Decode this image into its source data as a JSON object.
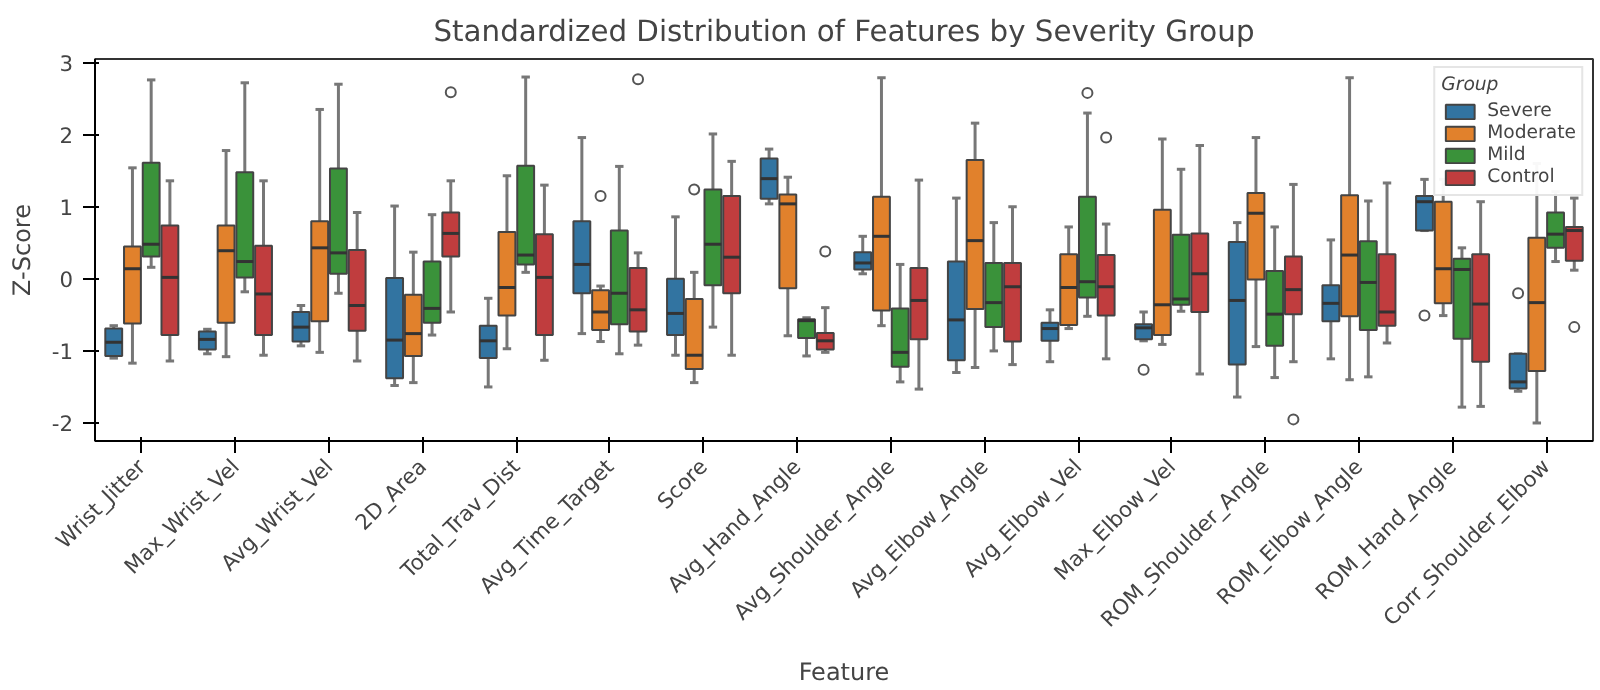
{
  "chart_data": {
    "type": "box",
    "title": "Standardized Distribution of Features by Severity Group",
    "xlabel": "Feature",
    "ylabel": "Z-Score",
    "legend_title": "Group",
    "legend": "top right",
    "grid": false,
    "categories": [
      "Wrist_Jitter",
      "Max_Wrist_Vel",
      "Avg_Wrist_Vel",
      "2D_Area",
      "Total_Trav_Dist",
      "Avg_Time_Target",
      "Score",
      "Avg_Hand_Angle",
      "Avg_Shoulder_Angle",
      "Avg_Elbow_Angle",
      "Avg_Elbow_Vel",
      "Max_Elbow_Vel",
      "ROM_Shoulder_Angle",
      "ROM_Elbow_Angle",
      "ROM_Hand_Angle",
      "Corr_Shoulder_Elbow"
    ],
    "ylim": [
      -2.25,
      3.05
    ],
    "yticks": [
      -2,
      -1,
      0,
      1,
      2,
      3
    ],
    "series": [
      {
        "name": "Severe",
        "color": "#3274a1",
        "boxes": [
          {
            "low": -1.1,
            "q1": -1.07,
            "median": -0.88,
            "q3": -0.69,
            "high": -0.65
          },
          {
            "low": -1.04,
            "q1": -0.98,
            "median": -0.84,
            "q3": -0.73,
            "high": -0.7
          },
          {
            "low": -0.93,
            "q1": -0.87,
            "median": -0.67,
            "q3": -0.46,
            "high": -0.37
          },
          {
            "low": -1.48,
            "q1": -1.38,
            "median": -0.85,
            "q3": 0.01,
            "high": 1.01
          },
          {
            "low": -1.5,
            "q1": -1.1,
            "median": -0.86,
            "q3": -0.65,
            "high": -0.27
          },
          {
            "low": -0.76,
            "q1": -0.2,
            "median": 0.2,
            "q3": 0.8,
            "high": 1.96
          },
          {
            "low": -1.06,
            "q1": -0.78,
            "median": -0.48,
            "q3": 0.0,
            "high": 0.86
          },
          {
            "low": 1.04,
            "q1": 1.11,
            "median": 1.39,
            "q3": 1.67,
            "high": 1.8
          },
          {
            "low": 0.07,
            "q1": 0.13,
            "median": 0.22,
            "q3": 0.37,
            "high": 0.59
          },
          {
            "low": -1.3,
            "q1": -1.13,
            "median": -0.57,
            "q3": 0.24,
            "high": 1.12
          },
          {
            "low": -1.15,
            "q1": -0.86,
            "median": -0.69,
            "q3": -0.61,
            "high": -0.43
          },
          {
            "low": -0.86,
            "q1": -0.84,
            "median": -0.68,
            "q3": -0.63,
            "high": -0.46,
            "outliers": [
              -1.26
            ]
          },
          {
            "low": -1.64,
            "q1": -1.19,
            "median": -0.3,
            "q3": 0.51,
            "high": 0.78
          },
          {
            "low": -1.11,
            "q1": -0.59,
            "median": -0.34,
            "q3": -0.09,
            "high": 0.54
          },
          {
            "low": 0.67,
            "q1": 0.67,
            "median": 1.07,
            "q3": 1.15,
            "high": 1.38,
            "outliers": [
              -0.51
            ]
          },
          {
            "low": -1.56,
            "q1": -1.52,
            "median": -1.43,
            "q3": -1.04,
            "high": -1.04,
            "outliers": [
              -0.2
            ]
          }
        ]
      },
      {
        "name": "Moderate",
        "color": "#e1812c",
        "boxes": [
          {
            "low": -1.17,
            "q1": -0.62,
            "median": 0.14,
            "q3": 0.45,
            "high": 1.54
          },
          {
            "low": -1.08,
            "q1": -0.61,
            "median": 0.39,
            "q3": 0.74,
            "high": 1.78
          },
          {
            "low": -1.02,
            "q1": -0.59,
            "median": 0.43,
            "q3": 0.8,
            "high": 2.35
          },
          {
            "low": -1.44,
            "q1": -1.07,
            "median": -0.76,
            "q3": -0.22,
            "high": 0.37
          },
          {
            "low": -0.97,
            "q1": -0.51,
            "median": -0.12,
            "q3": 0.65,
            "high": 1.43
          },
          {
            "low": -0.87,
            "q1": -0.71,
            "median": -0.46,
            "q3": -0.16,
            "high": -0.1,
            "outliers": [
              1.15
            ]
          },
          {
            "low": -1.44,
            "q1": -1.25,
            "median": -1.06,
            "q3": -0.28,
            "high": 0.09,
            "outliers": [
              1.24
            ]
          },
          {
            "low": -0.79,
            "q1": -0.13,
            "median": 1.04,
            "q3": 1.17,
            "high": 1.41
          },
          {
            "low": -0.65,
            "q1": -0.44,
            "median": 0.59,
            "q3": 1.14,
            "high": 2.79
          },
          {
            "low": -1.23,
            "q1": -0.42,
            "median": 0.53,
            "q3": 1.65,
            "high": 2.16
          },
          {
            "low": -0.69,
            "q1": -0.64,
            "median": -0.12,
            "q3": 0.34,
            "high": 0.72
          },
          {
            "low": -0.91,
            "q1": -0.78,
            "median": -0.36,
            "q3": 0.96,
            "high": 1.94
          },
          {
            "low": -0.94,
            "q1": -0.01,
            "median": 0.91,
            "q3": 1.19,
            "high": 1.96
          },
          {
            "low": -1.4,
            "q1": -0.52,
            "median": 0.33,
            "q3": 1.16,
            "high": 2.79
          },
          {
            "low": -0.51,
            "q1": -0.34,
            "median": 0.14,
            "q3": 1.07,
            "high": 1.38
          },
          {
            "low": -2.0,
            "q1": -1.28,
            "median": -0.33,
            "q3": 0.57,
            "high": 1.6
          }
        ]
      },
      {
        "name": "Mild",
        "color": "#3a923a",
        "boxes": [
          {
            "low": 0.16,
            "q1": 0.31,
            "median": 0.48,
            "q3": 1.61,
            "high": 2.76
          },
          {
            "low": -0.18,
            "q1": 0.02,
            "median": 0.24,
            "q3": 1.48,
            "high": 2.72
          },
          {
            "low": -0.2,
            "q1": 0.07,
            "median": 0.36,
            "q3": 1.53,
            "high": 2.7
          },
          {
            "low": -0.78,
            "q1": -0.61,
            "median": -0.41,
            "q3": 0.24,
            "high": 0.89
          },
          {
            "low": 0.09,
            "q1": 0.2,
            "median": 0.33,
            "q3": 1.57,
            "high": 2.8
          },
          {
            "low": -1.04,
            "q1": -0.63,
            "median": -0.2,
            "q3": 0.67,
            "high": 1.56
          },
          {
            "low": -0.67,
            "q1": -0.09,
            "median": 0.48,
            "q3": 1.24,
            "high": 2.01
          },
          {
            "low": -1.07,
            "q1": -0.82,
            "median": -0.58,
            "q3": -0.56,
            "high": -0.54
          },
          {
            "low": -1.43,
            "q1": -1.22,
            "median": -1.02,
            "q3": -0.41,
            "high": 0.2
          },
          {
            "low": -1.0,
            "q1": -0.67,
            "median": -0.33,
            "q3": 0.22,
            "high": 0.78
          },
          {
            "low": -0.52,
            "q1": -0.26,
            "median": -0.04,
            "q3": 1.14,
            "high": 2.3,
            "outliers": [
              2.58
            ]
          },
          {
            "low": -0.45,
            "q1": -0.36,
            "median": -0.28,
            "q3": 0.61,
            "high": 1.52
          },
          {
            "low": -1.37,
            "q1": -0.93,
            "median": -0.49,
            "q3": 0.11,
            "high": 0.72
          },
          {
            "low": -1.36,
            "q1": -0.71,
            "median": -0.05,
            "q3": 0.52,
            "high": 1.08
          },
          {
            "low": -1.78,
            "q1": -0.83,
            "median": 0.13,
            "q3": 0.28,
            "high": 0.43
          },
          {
            "low": 0.24,
            "q1": 0.43,
            "median": 0.62,
            "q3": 0.92,
            "high": 1.21
          }
        ]
      },
      {
        "name": "Control",
        "color": "#c03d3e",
        "boxes": [
          {
            "low": -1.14,
            "q1": -0.78,
            "median": 0.02,
            "q3": 0.74,
            "high": 1.36
          },
          {
            "low": -1.06,
            "q1": -0.78,
            "median": -0.21,
            "q3": 0.46,
            "high": 1.36
          },
          {
            "low": -1.14,
            "q1": -0.72,
            "median": -0.37,
            "q3": 0.4,
            "high": 0.92
          },
          {
            "low": -0.46,
            "q1": 0.31,
            "median": 0.63,
            "q3": 0.92,
            "high": 1.36,
            "outliers": [
              2.59
            ]
          },
          {
            "low": -1.13,
            "q1": -0.78,
            "median": 0.02,
            "q3": 0.62,
            "high": 1.3
          },
          {
            "low": -0.92,
            "q1": -0.73,
            "median": -0.43,
            "q3": 0.15,
            "high": 0.36,
            "outliers": [
              2.77
            ]
          },
          {
            "low": -1.06,
            "q1": -0.2,
            "median": 0.3,
            "q3": 1.15,
            "high": 1.63
          },
          {
            "low": -1.02,
            "q1": -0.98,
            "median": -0.86,
            "q3": -0.75,
            "high": -0.4,
            "outliers": [
              0.38
            ]
          },
          {
            "low": -1.53,
            "q1": -0.84,
            "median": -0.3,
            "q3": 0.15,
            "high": 1.37
          },
          {
            "low": -1.19,
            "q1": -0.87,
            "median": -0.11,
            "q3": 0.22,
            "high": 1.0
          },
          {
            "low": -1.11,
            "q1": -0.51,
            "median": -0.11,
            "q3": 0.33,
            "high": 0.76,
            "outliers": [
              1.96
            ]
          },
          {
            "low": -1.32,
            "q1": -0.46,
            "median": 0.07,
            "q3": 0.63,
            "high": 1.85
          },
          {
            "low": -1.15,
            "q1": -0.49,
            "median": -0.15,
            "q3": 0.31,
            "high": 1.31,
            "outliers": [
              -1.95
            ]
          },
          {
            "low": -0.89,
            "q1": -0.65,
            "median": -0.46,
            "q3": 0.34,
            "high": 1.33
          },
          {
            "low": -1.77,
            "q1": -1.15,
            "median": -0.35,
            "q3": 0.34,
            "high": 1.07
          },
          {
            "low": 0.12,
            "q1": 0.25,
            "median": 0.67,
            "q3": 0.72,
            "high": 1.12,
            "outliers": [
              -0.67
            ]
          }
        ]
      }
    ]
  }
}
